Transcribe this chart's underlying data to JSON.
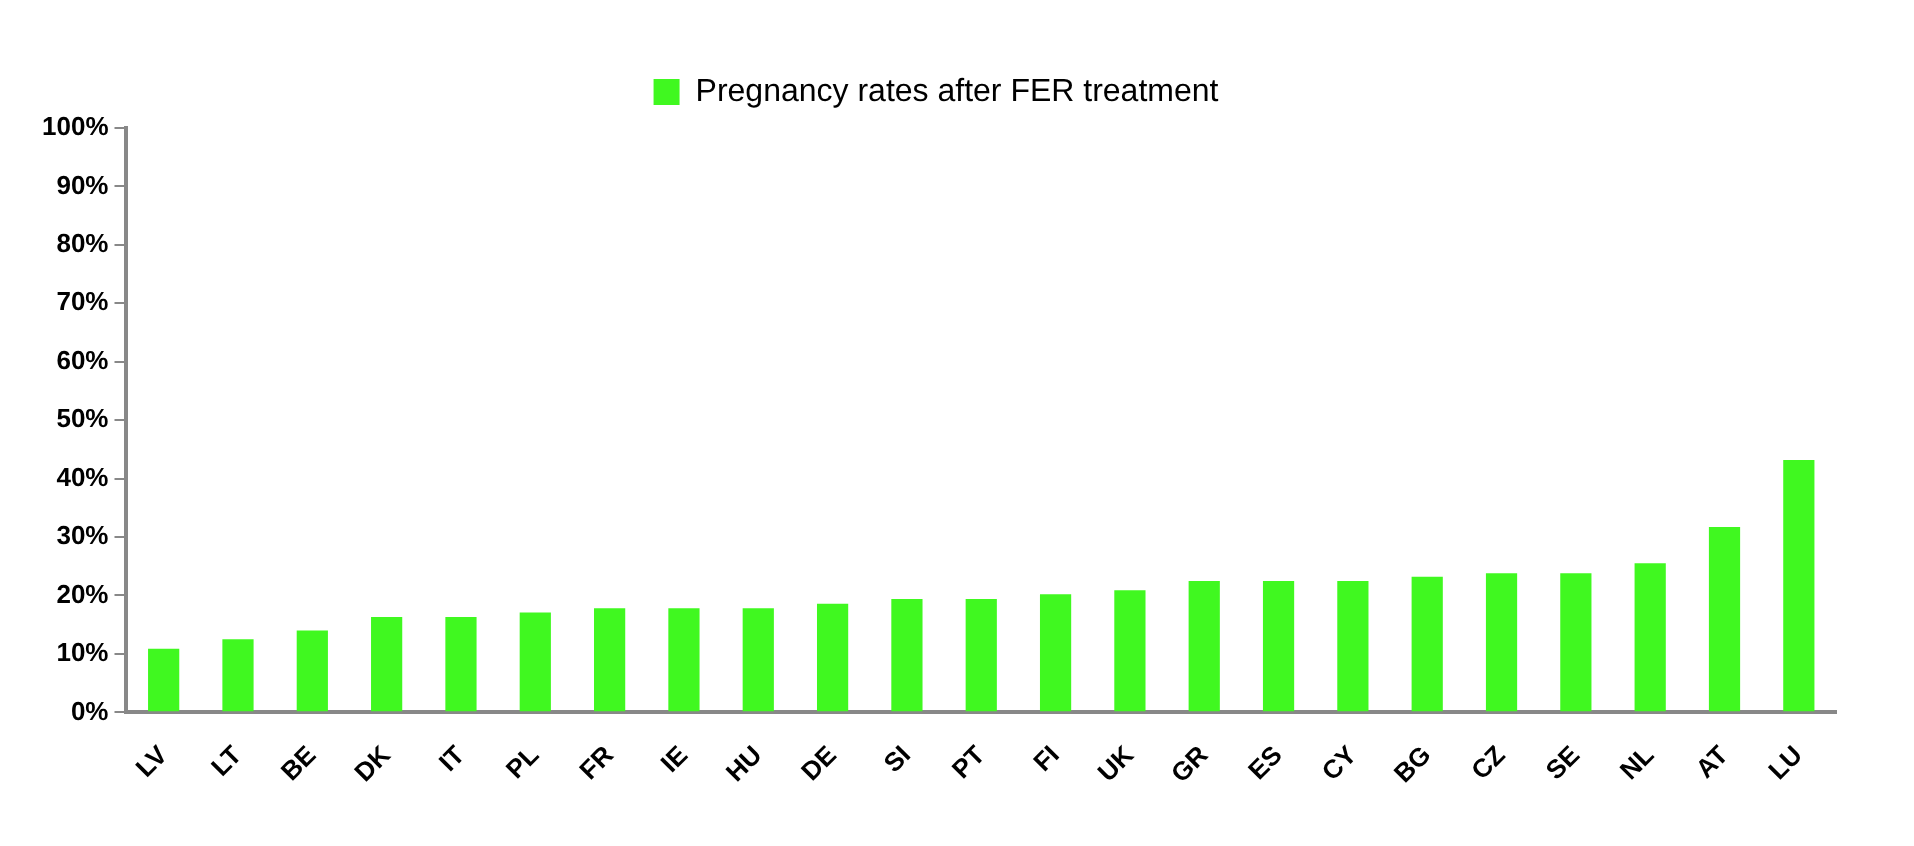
{
  "chart_data": {
    "type": "bar",
    "categories": [
      "LV",
      "LT",
      "BE",
      "DK",
      "IT",
      "PL",
      "FR",
      "IE",
      "HU",
      "DE",
      "SI",
      "PT",
      "FI",
      "UK",
      "GR",
      "ES",
      "CY",
      "BG",
      "CZ",
      "SE",
      "NL",
      "AT",
      "LU"
    ],
    "series": [
      {
        "name": "Pregnancy rates after FER treatment",
        "color": "#40f820",
        "values": [
          10.9,
          12.5,
          14,
          16.3,
          16.3,
          17.1,
          17.8,
          17.8,
          17.8,
          18.6,
          19.4,
          19.4,
          20.2,
          20.9,
          22.5,
          22.5,
          22.5,
          23.2,
          23.8,
          23.8,
          25.5,
          31.7,
          43.2
        ]
      }
    ],
    "ylim": [
      0,
      100
    ],
    "yticks": [
      {
        "value": 0,
        "label": "0%"
      },
      {
        "value": 10,
        "label": "10%"
      },
      {
        "value": 20,
        "label": "20%"
      },
      {
        "value": 30,
        "label": "30%"
      },
      {
        "value": 40,
        "label": "40%"
      },
      {
        "value": 50,
        "label": "50%"
      },
      {
        "value": 60,
        "label": "60%"
      },
      {
        "value": 70,
        "label": "70%"
      },
      {
        "value": 80,
        "label": "80%"
      },
      {
        "value": 90,
        "label": "90%"
      },
      {
        "value": 100,
        "label": "100%"
      }
    ],
    "grid": false,
    "legend": "top"
  }
}
